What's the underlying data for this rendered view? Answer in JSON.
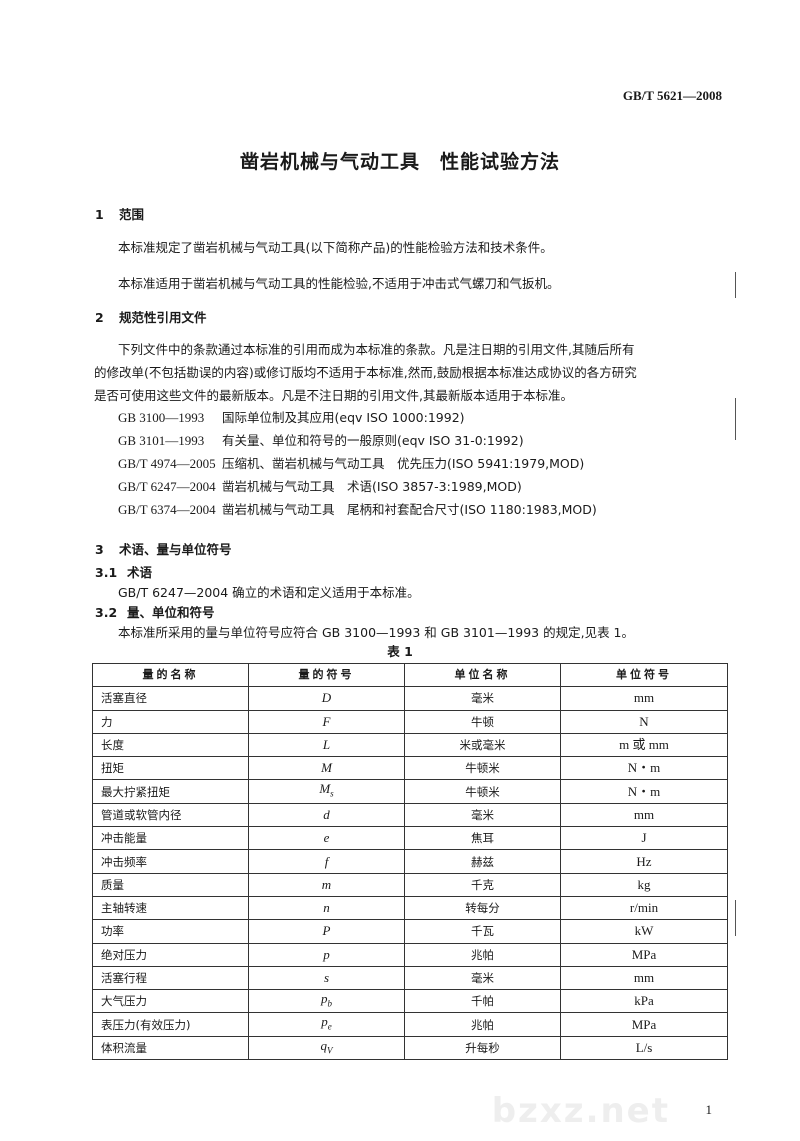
{
  "header": {
    "doc_code": "GB/T 5621—2008"
  },
  "title": "凿岩机械与气动工具　性能试验方法",
  "sections": {
    "s1": {
      "num": "1",
      "title": "范围",
      "paras": [
        "本标准规定了凿岩机械与气动工具(以下简称产品)的性能检验方法和技术条件。",
        "本标准适用于凿岩机械与气动工具的性能检验,不适用于冲击式气螺刀和气扳机。"
      ]
    },
    "s2": {
      "num": "2",
      "title": "规范性引用文件",
      "para_lines": [
        "下列文件中的条款通过本标准的引用而成为本标准的条款。凡是注日期的引用文件,其随后所有",
        "的修改单(不包括勘误的内容)或修订版均不适用于本标准,然而,鼓励根据本标准达成协议的各方研究",
        "是否可使用这些文件的最新版本。凡是不注日期的引用文件,其最新版本适用于本标准。"
      ],
      "refs": [
        {
          "code": "GB 3100—1993",
          "text": "国际单位制及其应用(eqv ISO 1000:1992)"
        },
        {
          "code": "GB 3101—1993",
          "text": "有关量、单位和符号的一般原则(eqv ISO 31-0:1992)"
        },
        {
          "code": "GB/T 4974—2005",
          "text": "压缩机、凿岩机械与气动工具　优先压力(ISO 5941:1979,MOD)"
        },
        {
          "code": "GB/T 6247—2004",
          "text": "凿岩机械与气动工具　术语(ISO 3857-3:1989,MOD)"
        },
        {
          "code": "GB/T 6374—2004",
          "text": "凿岩机械与气动工具　尾柄和衬套配合尺寸(ISO 1180:1983,MOD)"
        }
      ]
    },
    "s3": {
      "num": "3",
      "title": "术语、量与单位符号",
      "s31": {
        "num": "3.1",
        "title": "术语",
        "text": "GB/T 6247—2004 确立的术语和定义适用于本标准。"
      },
      "s32": {
        "num": "3.2",
        "title": "量、单位和符号",
        "text": "本标准所采用的量与单位符号应符合 GB 3100—1993 和 GB 3101—1993 的规定,见表 1。"
      }
    }
  },
  "table": {
    "caption": "表 1",
    "headers": [
      "量的名称",
      "量的符号",
      "单位名称",
      "单位符号"
    ],
    "rows": [
      {
        "name": "活塞直径",
        "sym": "D",
        "sub": "",
        "unit_name": "毫米",
        "unit": "mm"
      },
      {
        "name": "力",
        "sym": "F",
        "sub": "",
        "unit_name": "牛顿",
        "unit": "N"
      },
      {
        "name": "长度",
        "sym": "L",
        "sub": "",
        "unit_name": "米或毫米",
        "unit": "m 或 mm"
      },
      {
        "name": "扭矩",
        "sym": "M",
        "sub": "",
        "unit_name": "牛顿米",
        "unit": "N・m"
      },
      {
        "name": "最大拧紧扭矩",
        "sym": "M",
        "sub": "s",
        "unit_name": "牛顿米",
        "unit": "N・m"
      },
      {
        "name": "管道或软管内径",
        "sym": "d",
        "sub": "",
        "unit_name": "毫米",
        "unit": "mm"
      },
      {
        "name": "冲击能量",
        "sym": "e",
        "sub": "",
        "unit_name": "焦耳",
        "unit": "J"
      },
      {
        "name": "冲击频率",
        "sym": "f",
        "sub": "",
        "unit_name": "赫兹",
        "unit": "Hz"
      },
      {
        "name": "质量",
        "sym": "m",
        "sub": "",
        "unit_name": "千克",
        "unit": "kg"
      },
      {
        "name": "主轴转速",
        "sym": "n",
        "sub": "",
        "unit_name": "转每分",
        "unit": "r/min"
      },
      {
        "name": "功率",
        "sym": "P",
        "sub": "",
        "unit_name": "千瓦",
        "unit": "kW"
      },
      {
        "name": "绝对压力",
        "sym": "p",
        "sub": "",
        "unit_name": "兆帕",
        "unit": "MPa"
      },
      {
        "name": "活塞行程",
        "sym": "s",
        "sub": "",
        "unit_name": "毫米",
        "unit": "mm"
      },
      {
        "name": "大气压力",
        "sym": "p",
        "sub": "b",
        "unit_name": "千帕",
        "unit": "kPa"
      },
      {
        "name": "表压力(有效压力)",
        "sym": "p",
        "sub": "e",
        "unit_name": "兆帕",
        "unit": "MPa"
      },
      {
        "name": "体积流量",
        "sym": "q",
        "sub": "V",
        "unit_name": "升每秒",
        "unit": "L/s"
      }
    ]
  },
  "page_number": "1",
  "watermark": "bzxz.net"
}
